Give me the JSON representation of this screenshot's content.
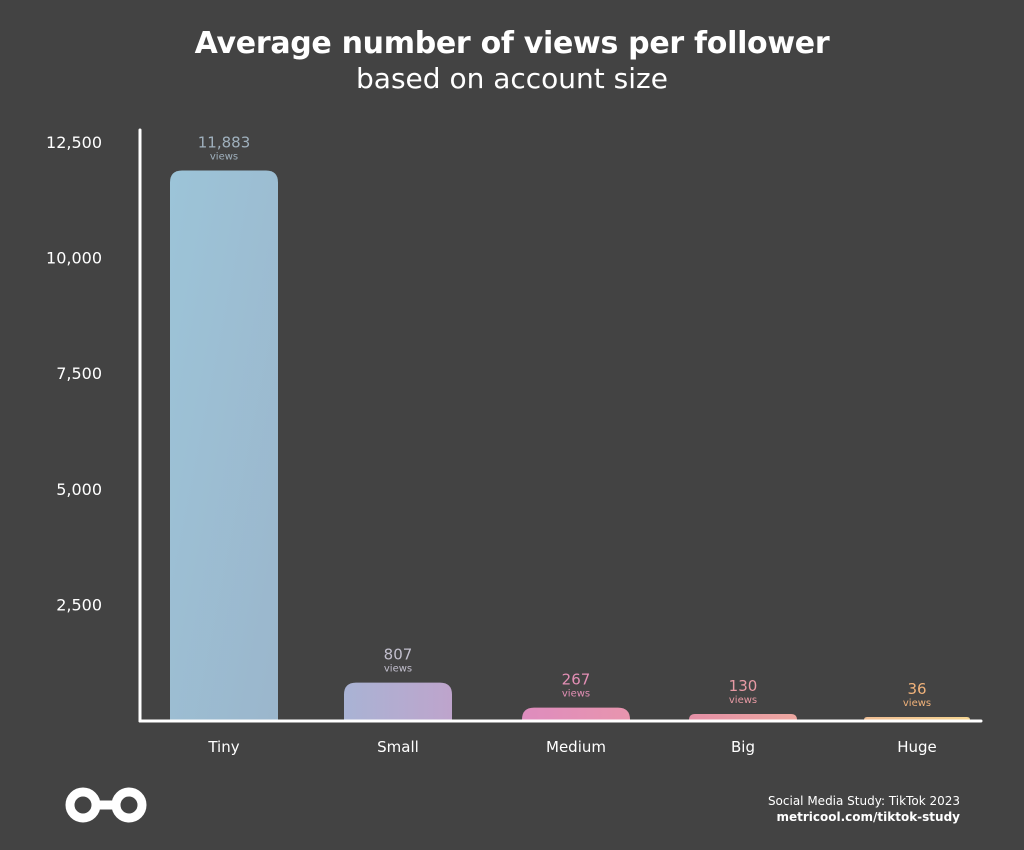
{
  "chart_data": {
    "type": "bar",
    "title": "Average number of views per follower",
    "subtitle": "based on account size",
    "categories": [
      "Tiny",
      "Small",
      "Medium",
      "Big",
      "Huge"
    ],
    "values": [
      11883,
      807,
      267,
      130,
      36
    ],
    "value_labels": [
      "11,883",
      "807",
      "267",
      "130",
      "36"
    ],
    "value_unit": "views",
    "y_ticks": [
      2500,
      5000,
      7500,
      10000,
      12500
    ],
    "y_tick_labels": [
      "2,500",
      "5,000",
      "7,500",
      "10,000",
      "12,500"
    ],
    "ylim": [
      0,
      12500
    ],
    "grid": false,
    "bar_colors": [
      "#9bbfd4",
      "#b5a8d0",
      "#e48fb8",
      "#e89aa4",
      "#f2c98e"
    ],
    "label_colors": [
      "#9fb0bd",
      "#c2bfcd",
      "#e38fb5",
      "#e89aa4",
      "#f0b27a"
    ]
  },
  "footer": {
    "source_line": "Social Media Study: TikTok 2023",
    "url": "metricool.com/tiktok-study"
  },
  "logo": {
    "icon": "metricool-infinity-icon"
  }
}
